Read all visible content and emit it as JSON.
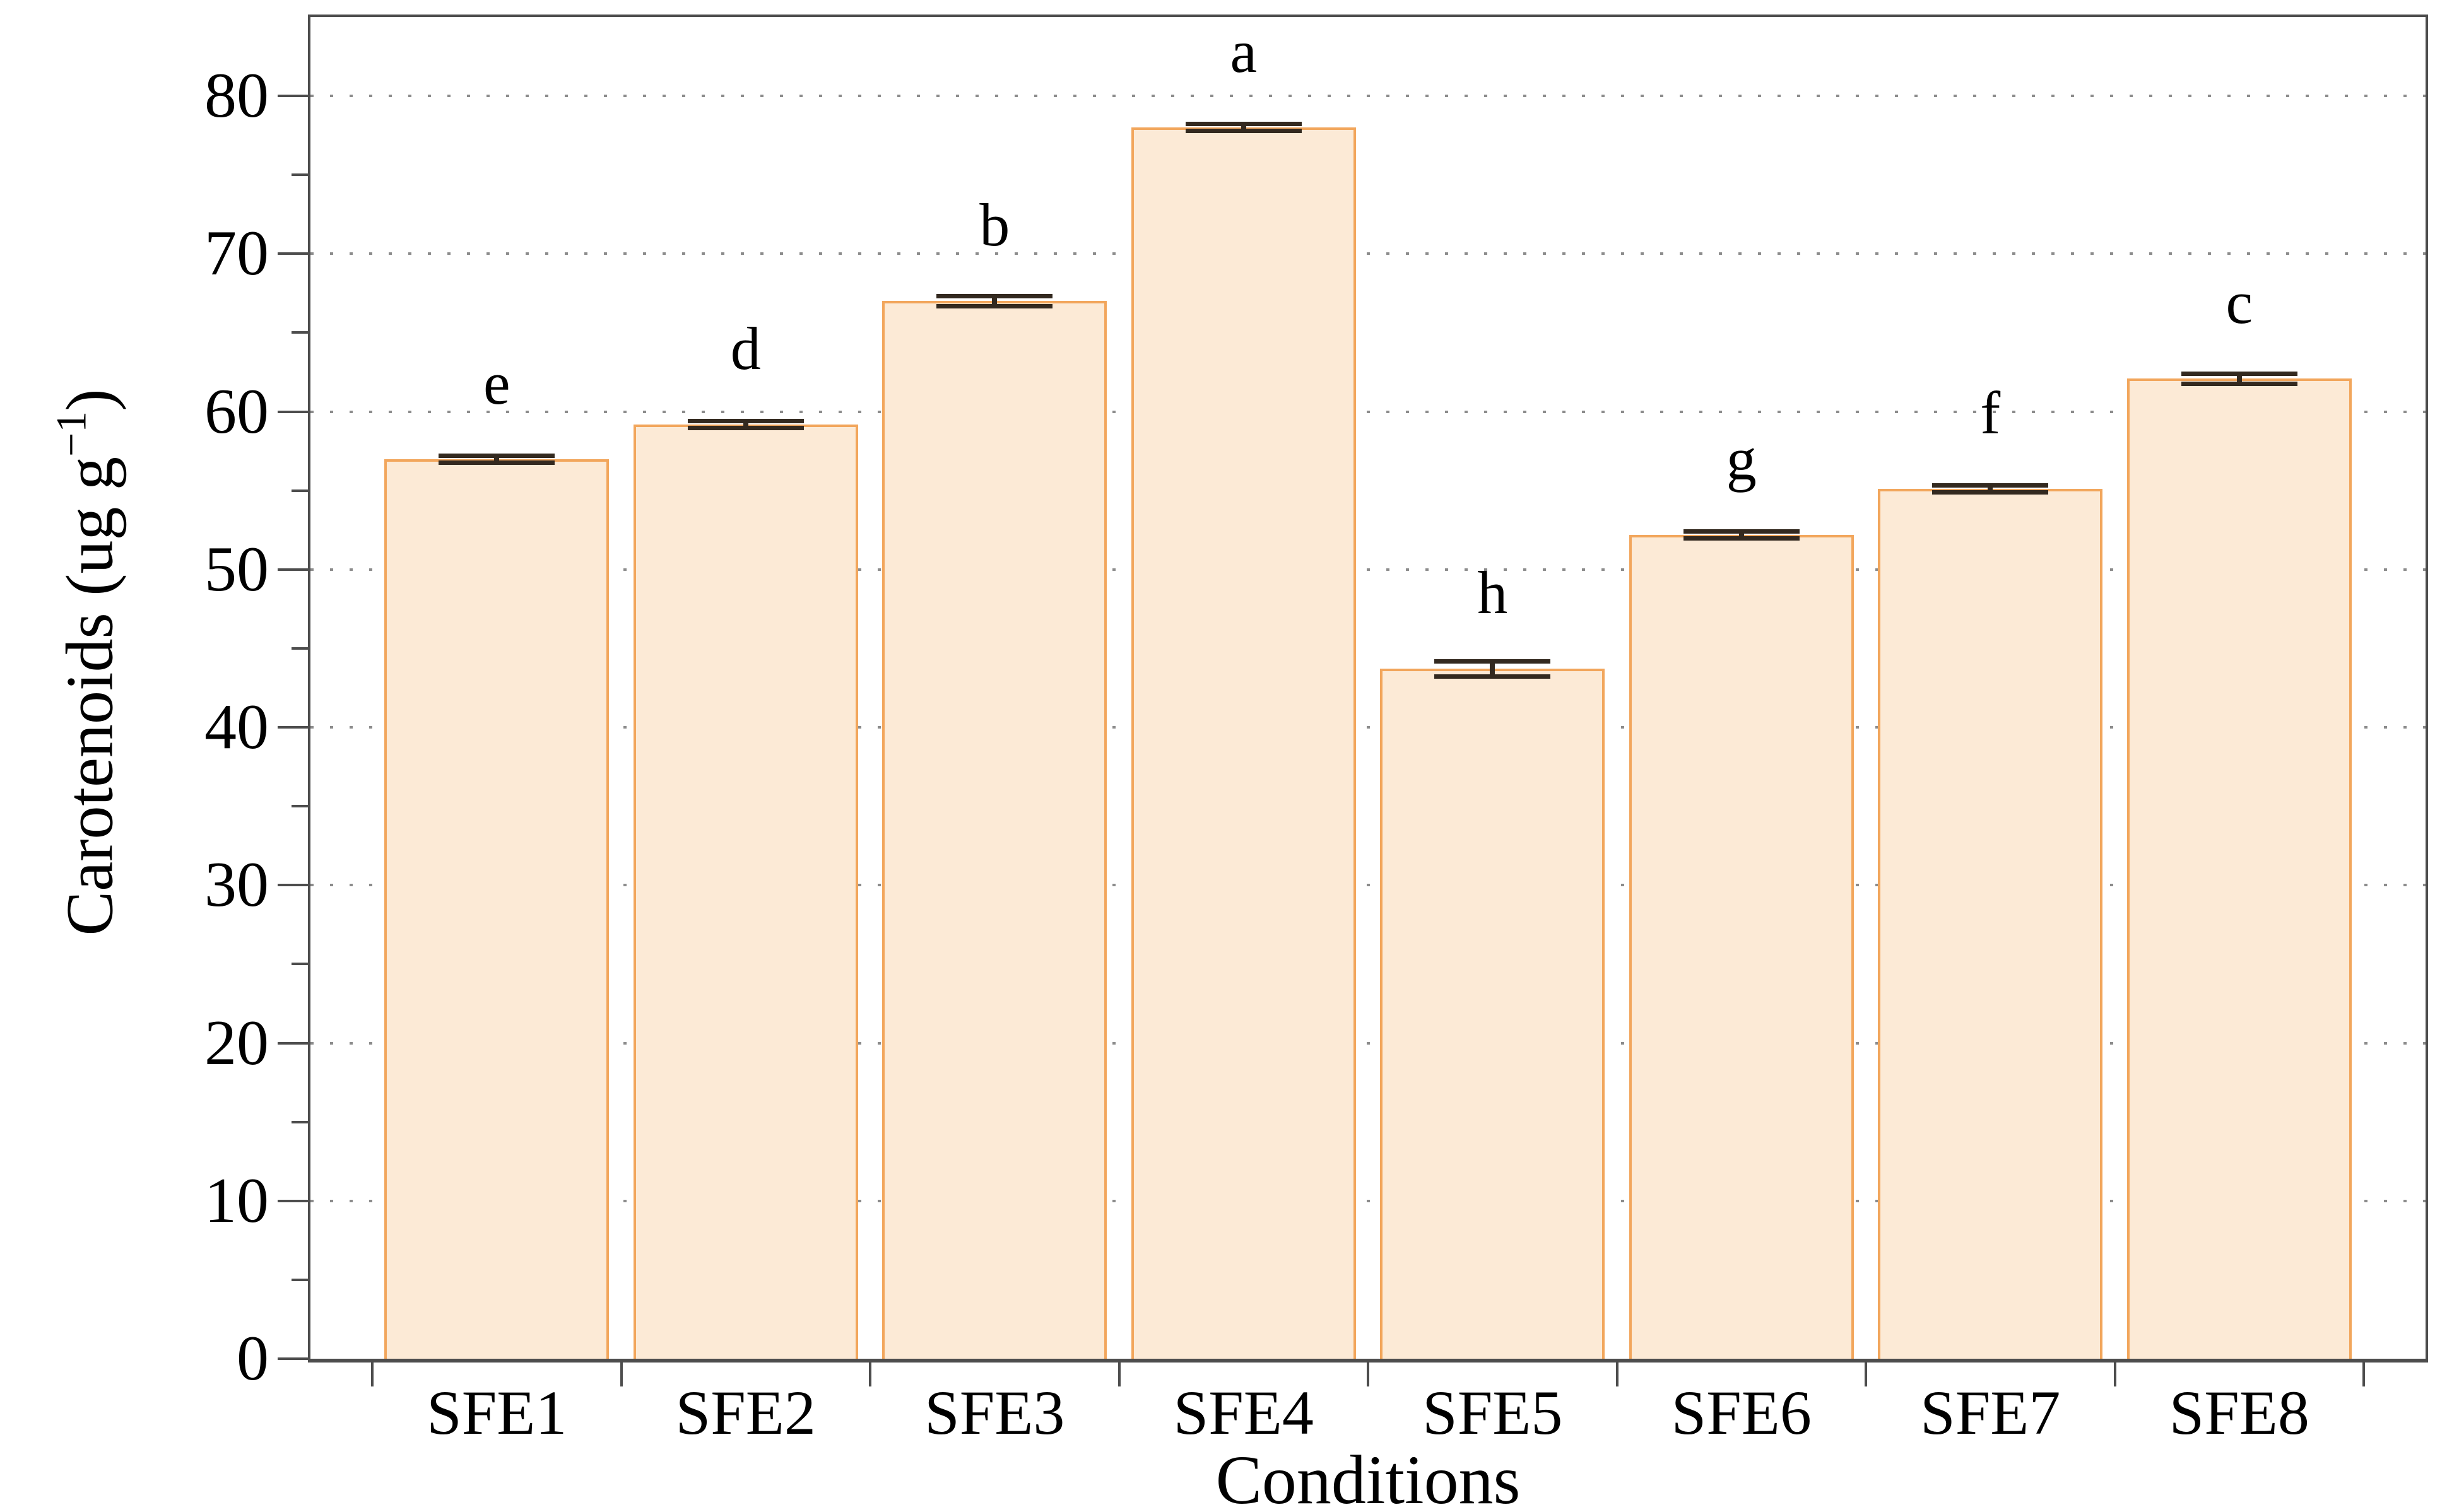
{
  "figure": {
    "background": "#ffffff",
    "axis_color": "#4d4d4d",
    "grid_color": "#8c8c8c",
    "text_color": "#000000"
  },
  "chart_data": {
    "type": "bar",
    "title": "",
    "xlabel": "Conditions",
    "ylabel": "Carotenoids (ug g⁻¹)",
    "ylabel_main": "Carotenoids (ug g",
    "ylabel_sup": "−1",
    "ylabel_close": ")",
    "categories": [
      "SFE1",
      "SFE2",
      "SFE3",
      "SFE4",
      "SFE5",
      "SFE6",
      "SFE7",
      "SFE8"
    ],
    "values": [
      57.0,
      59.2,
      67.0,
      78.0,
      43.7,
      52.2,
      55.1,
      62.1
    ],
    "errors": [
      0.2,
      0.2,
      0.3,
      0.2,
      0.45,
      0.2,
      0.2,
      0.3
    ],
    "significance_letters": [
      "e",
      "d",
      "b",
      "a",
      "h",
      "g",
      "f",
      "c"
    ],
    "ylim": [
      0,
      85
    ],
    "yticks": [
      0,
      10,
      20,
      30,
      40,
      50,
      60,
      70,
      80
    ],
    "ytick_minor_step": 5,
    "grid": "horizontal dotted at major ticks",
    "legend": "none",
    "bar_fill": "#fcead6",
    "bar_border": "#f2a65c",
    "error_bar_color": "#33291f"
  }
}
